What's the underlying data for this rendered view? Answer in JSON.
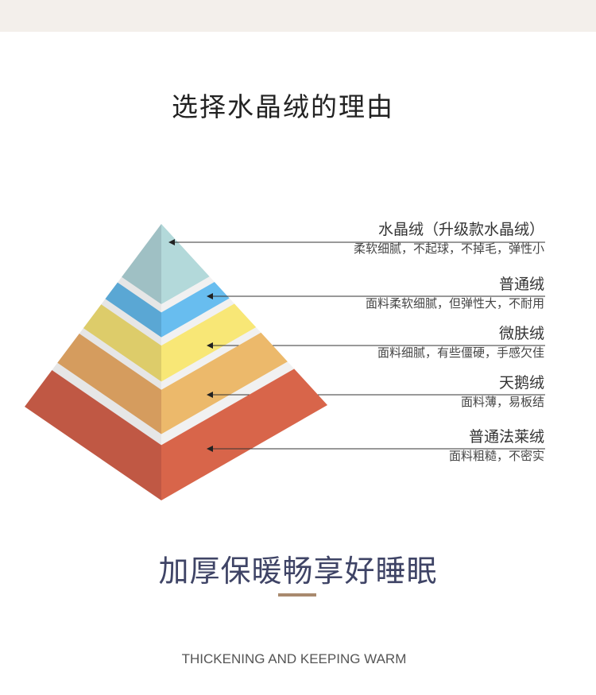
{
  "header": {
    "title": "选择水晶绒的理由"
  },
  "pyramid": {
    "layers": [
      {
        "name": "水晶绒（升级款水晶绒）",
        "desc": "柔软细腻，不起球，不掉毛，弹性小",
        "color_left": "#9fc0c4",
        "color_right": "#b3d9da"
      },
      {
        "name": "普通绒",
        "desc": "面料柔软细腻，但弹性大，不耐用",
        "color_left": "#5aa7d4",
        "color_right": "#68bdef"
      },
      {
        "name": "微肤绒",
        "desc": "面料细腻，有些僵硬，手感欠佳",
        "color_left": "#ddcc6a",
        "color_right": "#f8e776"
      },
      {
        "name": "天鹅绒",
        "desc": "面料薄，易板结",
        "color_left": "#d59c5e",
        "color_right": "#ecb96b"
      },
      {
        "name": "普通法莱绒",
        "desc": "面料粗糙，不密实",
        "color_left": "#c05844",
        "color_right": "#d8654a"
      }
    ]
  },
  "footer": {
    "slogan": "加厚保暖畅享好睡眠",
    "english": "THICKENING AND KEEPING WARM",
    "accent_color": "#a98a6e"
  }
}
